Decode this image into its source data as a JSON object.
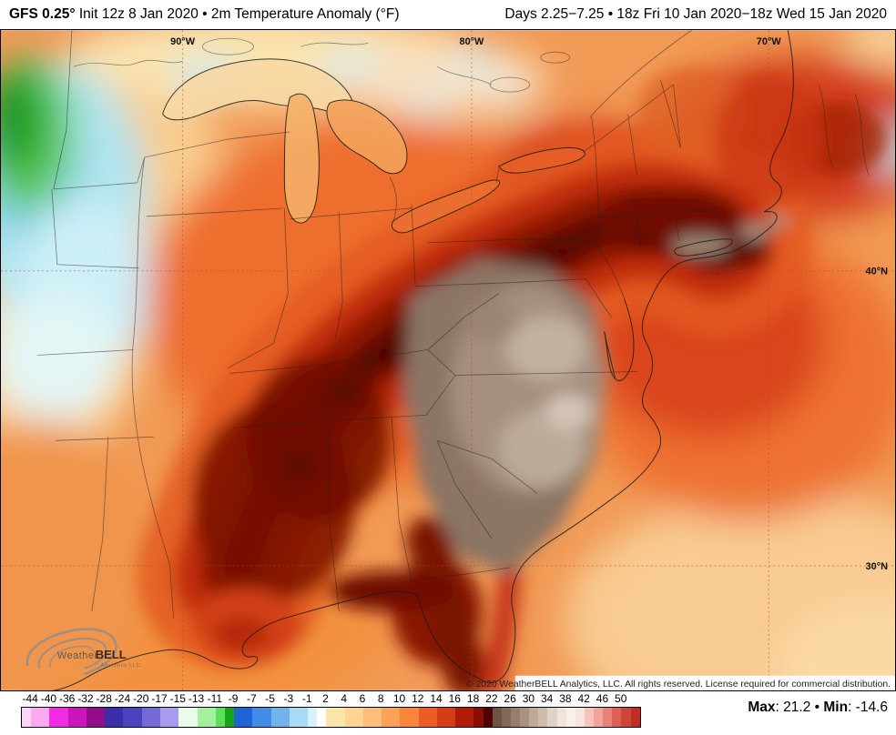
{
  "header": {
    "model": "GFS 0.25°",
    "left_rest": " Init 12z 8 Jan 2020 • 2m Temperature Anomaly (°F)",
    "valid_range": "Days 2.25−7.25 • 18z Fri 10 Jan 2020−18z Wed 15 Jan 2020"
  },
  "map": {
    "lon_labels": [
      "90°W",
      "80°W",
      "70°W"
    ],
    "lat_labels": [
      "40°N",
      "30°N"
    ],
    "copyright": "© 2020 WeatherBELL Analytics, LLC. All rights reserved. License required for commercial distribution.",
    "logo": {
      "weather": "Weather",
      "bell": "BELL",
      "sub": "Analytics LLC"
    }
  },
  "colorbar": {
    "labels": [
      "-44",
      "-40",
      "-36",
      "-32",
      "-28",
      "-24",
      "-20",
      "-17",
      "-15",
      "-13",
      "-11",
      "-9",
      "-7",
      "-5",
      "-3",
      "-1",
      "2",
      "4",
      "6",
      "8",
      "10",
      "12",
      "14",
      "16",
      "18",
      "22",
      "26",
      "30",
      "34",
      "38",
      "42",
      "46",
      "50"
    ],
    "bands": [
      {
        "w": 0.5,
        "c": "#fbd7f5"
      },
      {
        "w": 1,
        "c": "#f8a9ef"
      },
      {
        "w": 1,
        "c": "#f32be2"
      },
      {
        "w": 1,
        "c": "#ca16bb"
      },
      {
        "w": 1,
        "c": "#930e8a"
      },
      {
        "w": 1,
        "c": "#3b2ea7"
      },
      {
        "w": 1,
        "c": "#4d42bd"
      },
      {
        "w": 1,
        "c": "#7569d5"
      },
      {
        "w": 1,
        "c": "#a89cec"
      },
      {
        "w": 1,
        "c": "#eafce9"
      },
      {
        "w": 1,
        "c": "#a3f09e"
      },
      {
        "w": 0.5,
        "c": "#5edd58"
      },
      {
        "w": 0.5,
        "c": "#17a517"
      },
      {
        "w": 1,
        "c": "#1f64d6"
      },
      {
        "w": 1,
        "c": "#418ce6"
      },
      {
        "w": 1,
        "c": "#72b3ee"
      },
      {
        "w": 1,
        "c": "#a9daf5"
      },
      {
        "w": 0.5,
        "c": "#d9f1fa"
      },
      {
        "w": 0.5,
        "c": "#ffffff"
      },
      {
        "w": 1,
        "c": "#fce5aa"
      },
      {
        "w": 1,
        "c": "#fdd492"
      },
      {
        "w": 1,
        "c": "#fdbe7a"
      },
      {
        "w": 1,
        "c": "#fba257"
      },
      {
        "w": 1,
        "c": "#f8853b"
      },
      {
        "w": 1,
        "c": "#ee5b24"
      },
      {
        "w": 1,
        "c": "#d53d16"
      },
      {
        "w": 1,
        "c": "#b01c08"
      },
      {
        "w": 0.5,
        "c": "#8a0f02"
      },
      {
        "w": 0.5,
        "c": "#4f0400"
      },
      {
        "w": 0.5,
        "c": "#6e5346"
      },
      {
        "w": 0.5,
        "c": "#826857"
      },
      {
        "w": 0.5,
        "c": "#977d6c"
      },
      {
        "w": 0.5,
        "c": "#ab9280"
      },
      {
        "w": 0.5,
        "c": "#c0a896"
      },
      {
        "w": 0.5,
        "c": "#d0bbaa"
      },
      {
        "w": 0.5,
        "c": "#e0d2c4"
      },
      {
        "w": 0.5,
        "c": "#efe5da"
      },
      {
        "w": 0.5,
        "c": "#f9f0e9"
      },
      {
        "w": 0.5,
        "c": "#fbe3de"
      },
      {
        "w": 0.5,
        "c": "#f7c3bd"
      },
      {
        "w": 0.5,
        "c": "#f0a49c"
      },
      {
        "w": 0.5,
        "c": "#e68279"
      },
      {
        "w": 0.5,
        "c": "#dc6055"
      },
      {
        "w": 0.5,
        "c": "#d0443a"
      },
      {
        "w": 0.5,
        "c": "#c12d24"
      }
    ]
  },
  "stats": {
    "max_label": "Max",
    "max_value": ": 21.2",
    "bullet": " • ",
    "min_label": "Min",
    "min_value": ": -14.6"
  }
}
